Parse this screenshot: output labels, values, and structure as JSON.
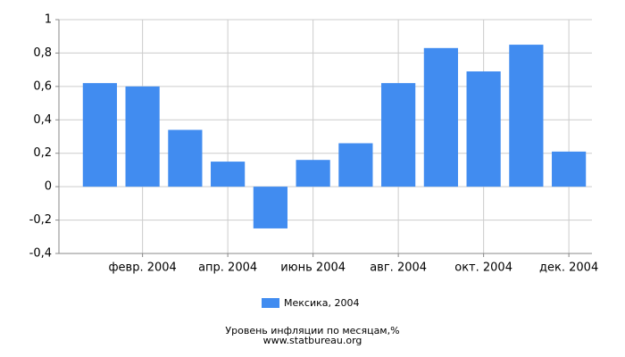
{
  "chart_data": {
    "type": "bar",
    "categories": [
      null,
      "февр. 2004",
      null,
      "апр. 2004",
      null,
      "июнь 2004",
      null,
      "авг. 2004",
      null,
      "окт. 2004",
      null,
      "дек. 2004"
    ],
    "series": [
      {
        "name": "Мексика, 2004",
        "color": "#418cf0",
        "values": [
          0.62,
          0.6,
          0.34,
          0.15,
          -0.25,
          0.16,
          0.26,
          0.62,
          0.83,
          0.69,
          0.85,
          0.21
        ]
      }
    ],
    "ylim": [
      -0.4,
      1
    ],
    "yticks": [
      {
        "value": -0.4,
        "label": "-0,4"
      },
      {
        "value": -0.2,
        "label": "-0,2"
      },
      0,
      {
        "value": 0.2,
        "label": "0,2"
      },
      {
        "value": 0.4,
        "label": "0,4"
      },
      {
        "value": 0.6,
        "label": "0,6"
      },
      {
        "value": 0.8,
        "label": "0,8"
      },
      1
    ],
    "grid": true,
    "title": "Уровень инфляции по месяцам,%",
    "subtitle": "www.statbureau.org"
  }
}
